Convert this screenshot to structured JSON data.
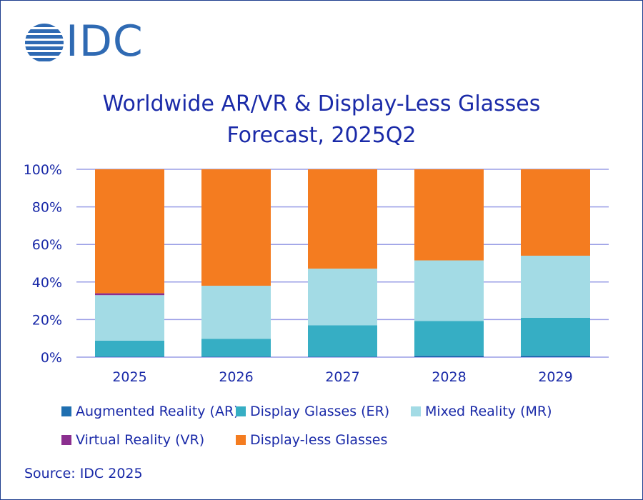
{
  "logo": {
    "text": "IDC"
  },
  "chart_data": {
    "type": "bar",
    "stacked": true,
    "title": [
      "Worldwide AR/VR & Display-Less Glasses",
      "Forecast, 2025Q2"
    ],
    "categories": [
      "2025",
      "2026",
      "2027",
      "2028",
      "2029"
    ],
    "ylim": [
      0,
      100
    ],
    "yticks": [
      "0%",
      "20%",
      "40%",
      "60%",
      "80%",
      "100%"
    ],
    "grid": true,
    "series": [
      {
        "name": "Augmented Reality (AR)",
        "color": "#1f6fb0",
        "values": [
          0.3,
          0.3,
          0.3,
          0.8,
          0.8
        ]
      },
      {
        "name": "Display Glasses (ER)",
        "color": "#36aec4",
        "values": [
          8.5,
          9.4,
          16.7,
          18.4,
          20.2
        ]
      },
      {
        "name": "Mixed Reality (MR)",
        "color": "#a3dbe5",
        "values": [
          24.2,
          28.3,
          30.1,
          32.3,
          33.0
        ]
      },
      {
        "name": "Virtual Reality (VR)",
        "color": "#8b2f8f",
        "values": [
          1.0,
          0.0,
          0.0,
          0.0,
          0.0
        ]
      },
      {
        "name": "Display-less Glasses",
        "color": "#f47c20",
        "values": [
          66.0,
          62.0,
          52.9,
          48.5,
          46.0
        ]
      }
    ],
    "legend_placement": "bottom"
  },
  "source": "Source: IDC 2025"
}
